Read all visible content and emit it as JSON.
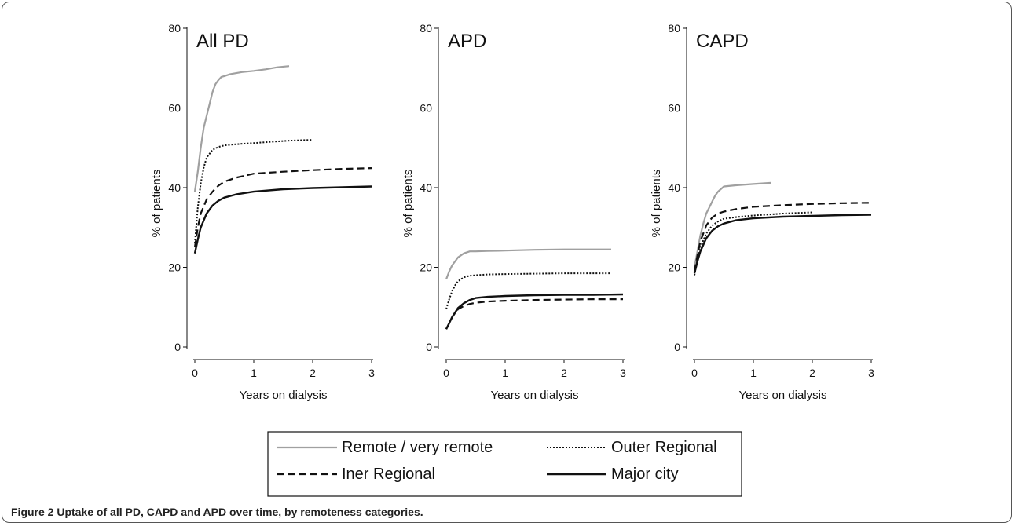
{
  "figure": {
    "label": "Figure 2",
    "text": "Uptake of all PD, CAPD and APD over time, by remoteness categories."
  },
  "colors": {
    "remote": "#a0a0a0",
    "outer": "#111111",
    "inner": "#111111",
    "major": "#111111"
  },
  "legend": {
    "entries": [
      {
        "key": "remote",
        "label": "Remote / very remote"
      },
      {
        "key": "outer",
        "label": "Outer Regional"
      },
      {
        "key": "inner",
        "label": "Iner Regional"
      },
      {
        "key": "major",
        "label": "Major city"
      }
    ]
  },
  "chart_data": [
    {
      "type": "line",
      "title": "All PD",
      "xlabel": "Years on dialysis",
      "ylabel": "% of patients",
      "xlim": [
        0,
        3
      ],
      "ylim": [
        0,
        80
      ],
      "xticks": [
        "0",
        "1",
        "2",
        "3"
      ],
      "yticks": [
        "0",
        "20",
        "40",
        "60",
        "80"
      ],
      "series": [
        {
          "key": "remote",
          "name": "Remote / very remote",
          "x": [
            0,
            0.05,
            0.1,
            0.15,
            0.2,
            0.25,
            0.3,
            0.35,
            0.4,
            0.45,
            0.5,
            0.6,
            0.8,
            1.0,
            1.2,
            1.4,
            1.6
          ],
          "y": [
            39,
            44,
            50,
            55,
            58,
            61,
            64,
            66,
            67,
            67.8,
            68,
            68.5,
            69,
            69.3,
            69.7,
            70.2,
            70.5
          ]
        },
        {
          "key": "outer",
          "name": "Outer Regional",
          "x": [
            0,
            0.05,
            0.1,
            0.15,
            0.2,
            0.3,
            0.4,
            0.5,
            0.7,
            1.0,
            1.3,
            1.6,
            2.0
          ],
          "y": [
            26,
            35,
            41,
            45,
            47.5,
            49.5,
            50.2,
            50.6,
            50.9,
            51.2,
            51.5,
            51.8,
            52
          ]
        },
        {
          "key": "inner",
          "name": "Iner Regional",
          "x": [
            0,
            0.05,
            0.1,
            0.2,
            0.3,
            0.4,
            0.5,
            0.7,
            1.0,
            1.5,
            2.0,
            2.5,
            3.0
          ],
          "y": [
            25,
            30,
            33.5,
            37,
            39,
            40.5,
            41.5,
            42.5,
            43.5,
            44,
            44.4,
            44.7,
            44.9
          ]
        },
        {
          "key": "major",
          "name": "Major city",
          "x": [
            0,
            0.05,
            0.1,
            0.2,
            0.3,
            0.4,
            0.5,
            0.7,
            1.0,
            1.5,
            2.0,
            2.5,
            3.0
          ],
          "y": [
            23.5,
            27,
            30,
            33.5,
            35.5,
            36.7,
            37.5,
            38.3,
            39,
            39.6,
            39.9,
            40.1,
            40.3
          ]
        }
      ]
    },
    {
      "type": "line",
      "title": "APD",
      "xlabel": "Years on dialysis",
      "ylabel": "% of patients",
      "xlim": [
        0,
        3
      ],
      "ylim": [
        0,
        80
      ],
      "xticks": [
        "0",
        "1",
        "2",
        "3"
      ],
      "yticks": [
        "0",
        "20",
        "40",
        "60",
        "80"
      ],
      "series": [
        {
          "key": "remote",
          "name": "Remote / very remote",
          "x": [
            0,
            0.05,
            0.1,
            0.15,
            0.2,
            0.3,
            0.4,
            0.5,
            0.7,
            1.0,
            1.5,
            2.0,
            2.8
          ],
          "y": [
            17,
            19,
            20.5,
            21.5,
            22.5,
            23.5,
            24,
            24,
            24.1,
            24.2,
            24.4,
            24.5,
            24.5
          ]
        },
        {
          "key": "outer",
          "name": "Outer Regional",
          "x": [
            0,
            0.05,
            0.1,
            0.15,
            0.2,
            0.3,
            0.4,
            0.5,
            0.7,
            1.0,
            1.5,
            2.0,
            2.8
          ],
          "y": [
            9.5,
            12,
            14,
            15.5,
            16.5,
            17.5,
            17.9,
            18,
            18.2,
            18.3,
            18.4,
            18.5,
            18.5
          ]
        },
        {
          "key": "inner",
          "name": "Iner Regional",
          "x": [
            0,
            0.05,
            0.1,
            0.2,
            0.3,
            0.4,
            0.5,
            0.7,
            1.0,
            1.5,
            2.0,
            2.5,
            3.0
          ],
          "y": [
            4.5,
            6,
            7.5,
            9.5,
            10.3,
            10.8,
            11.1,
            11.4,
            11.6,
            11.8,
            11.9,
            12,
            12
          ]
        },
        {
          "key": "major",
          "name": "Major city",
          "x": [
            0,
            0.05,
            0.1,
            0.2,
            0.3,
            0.4,
            0.5,
            0.7,
            1.0,
            1.5,
            2.0,
            2.5,
            3.0
          ],
          "y": [
            4.5,
            6,
            7.5,
            9.8,
            11,
            11.8,
            12.3,
            12.6,
            12.8,
            13,
            13.1,
            13.1,
            13.2
          ]
        }
      ]
    },
    {
      "type": "line",
      "title": "CAPD",
      "xlabel": "Years on dialysis",
      "ylabel": "% of patients",
      "xlim": [
        0,
        3
      ],
      "ylim": [
        0,
        80
      ],
      "xticks": [
        "0",
        "1",
        "2",
        "3"
      ],
      "yticks": [
        "0",
        "20",
        "40",
        "60",
        "80"
      ],
      "series": [
        {
          "key": "remote",
          "name": "Remote / very remote",
          "x": [
            0,
            0.05,
            0.1,
            0.15,
            0.2,
            0.25,
            0.3,
            0.35,
            0.4,
            0.5,
            0.7,
            1.0,
            1.3
          ],
          "y": [
            20,
            24,
            28,
            31,
            33.5,
            35,
            36.5,
            38,
            39,
            40.3,
            40.6,
            40.9,
            41.2
          ]
        },
        {
          "key": "outer",
          "name": "Outer Regional",
          "x": [
            0,
            0.05,
            0.1,
            0.2,
            0.3,
            0.4,
            0.5,
            0.7,
            1.0,
            1.5,
            2.0
          ],
          "y": [
            18,
            22,
            25,
            28.5,
            30.5,
            31.5,
            32.2,
            32.6,
            33,
            33.5,
            33.8
          ]
        },
        {
          "key": "inner",
          "name": "Iner Regional",
          "x": [
            0,
            0.05,
            0.1,
            0.2,
            0.3,
            0.4,
            0.5,
            0.7,
            1.0,
            1.5,
            2.0,
            2.5,
            3.0
          ],
          "y": [
            19,
            23,
            26.5,
            30.5,
            32.5,
            33.5,
            34,
            34.6,
            35.2,
            35.6,
            35.9,
            36.1,
            36.2
          ]
        },
        {
          "key": "major",
          "name": "Major city",
          "x": [
            0,
            0.05,
            0.1,
            0.2,
            0.3,
            0.4,
            0.5,
            0.7,
            1.0,
            1.5,
            2.0,
            2.5,
            3.0
          ],
          "y": [
            18.5,
            21.5,
            24,
            27.3,
            29.2,
            30.3,
            31,
            31.8,
            32.3,
            32.7,
            32.9,
            33.1,
            33.2
          ]
        }
      ]
    }
  ]
}
